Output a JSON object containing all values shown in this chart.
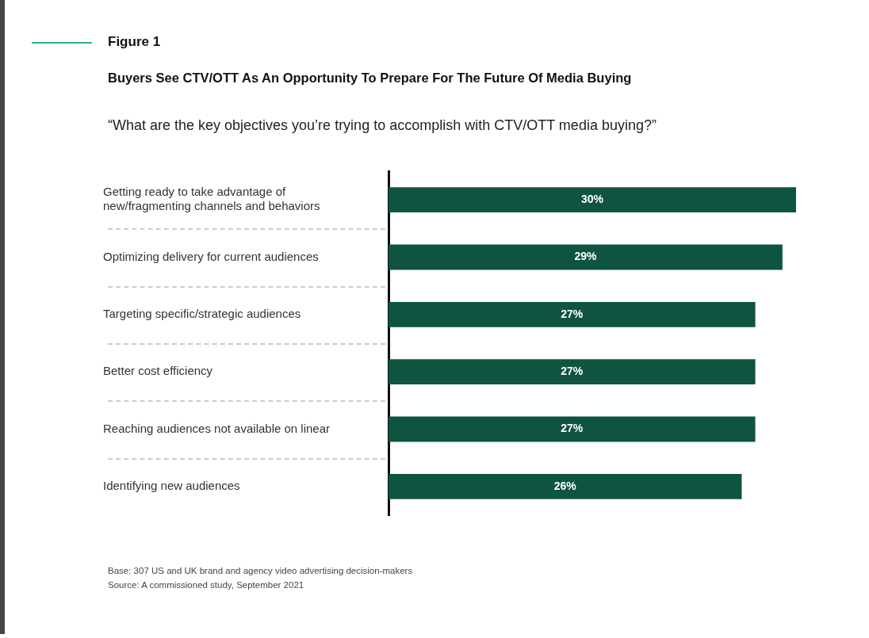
{
  "chart_data": {
    "type": "bar",
    "orientation": "horizontal",
    "title": "Figure 1",
    "subtitle": "Buyers See CTV/OTT As An Opportunity To Prepare For The Future Of Media Buying",
    "annotations": [
      "“What are the key objectives you’re trying to accomplish with CTV/OTT media buying?”",
      "Base: 307 US and UK brand and agency video advertising decision-makers",
      "Source: A commissioned study, September 2021"
    ],
    "categories": [
      "Getting ready to take advantage of new/fragmenting channels and behaviors",
      "Optimizing delivery for current audiences",
      "Targeting specific/strategic audiences",
      "Better cost efficiency",
      "Reaching audiences not available on linear",
      "Identifying new audiences"
    ],
    "values": [
      30,
      29,
      27,
      27,
      27,
      26
    ],
    "value_labels": [
      "30%",
      "29%",
      "27%",
      "27%",
      "27%",
      "26%"
    ],
    "color": "#0f5441",
    "xlim": [
      0,
      30
    ],
    "tick_labels": "y"
  }
}
